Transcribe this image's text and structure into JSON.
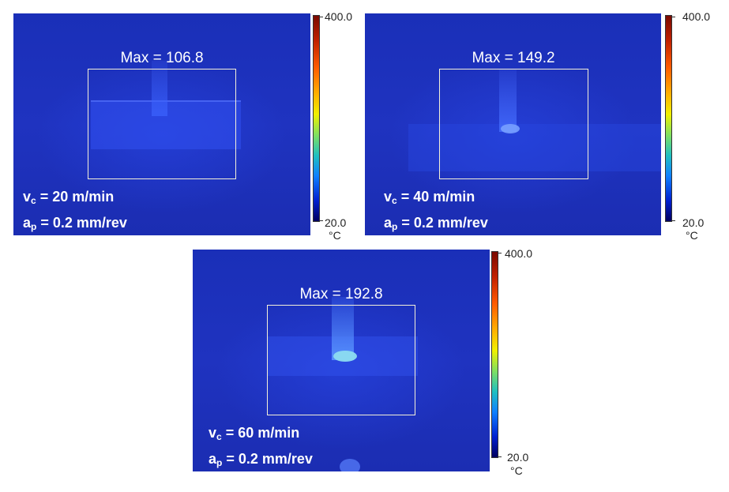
{
  "scale": {
    "max_label": "400.0",
    "min_label": "20.0",
    "unit_label": "°C"
  },
  "panels": [
    {
      "max_text": "Max = 106.8",
      "vc_sym": "v",
      "vc_sub": "c",
      "vc_val": " = 20 m/min",
      "ap_sym": "a",
      "ap_sub": "p",
      "ap_val": " = 0.2 mm/rev"
    },
    {
      "max_text": "Max = 149.2",
      "vc_sym": "v",
      "vc_sub": "c",
      "vc_val": " = 40 m/min",
      "ap_sym": "a",
      "ap_sub": "p",
      "ap_val": " = 0.2 mm/rev"
    },
    {
      "max_text": "Max = 192.8",
      "vc_sym": "v",
      "vc_sub": "c",
      "vc_val": " = 60 m/min",
      "ap_sym": "a",
      "ap_sub": "p",
      "ap_val": " = 0.2 mm/rev"
    }
  ]
}
